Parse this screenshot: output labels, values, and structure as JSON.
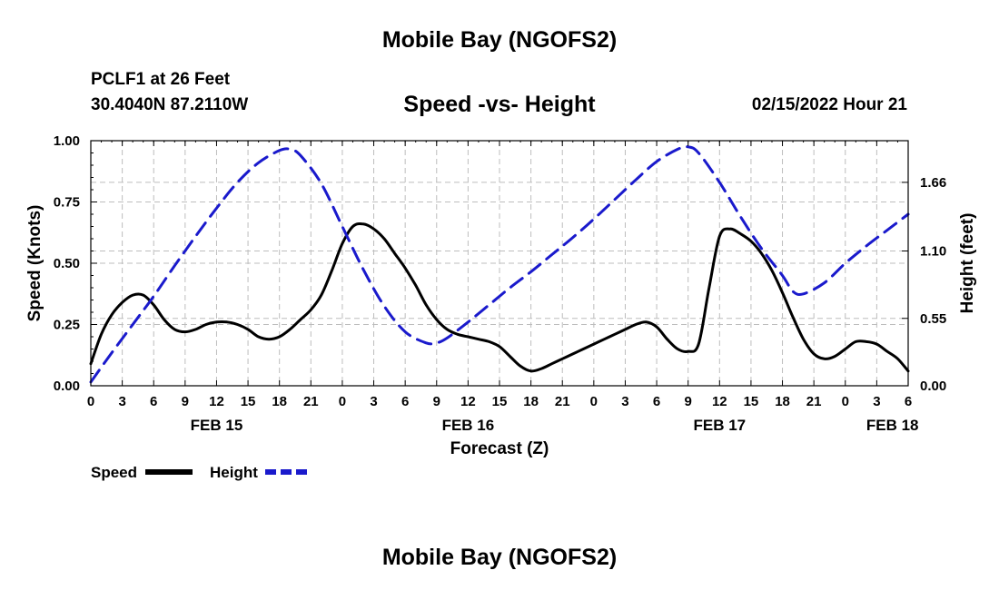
{
  "header": {
    "title": "Mobile Bay (NGOFS2)",
    "station": "PCLF1 at 26 Feet",
    "coords": "30.4040N  87.2110W",
    "subtitle": "Speed -vs- Height",
    "date": "02/15/2022 Hour 21"
  },
  "footer": {
    "title": "Mobile Bay (NGOFS2)"
  },
  "chart_data": {
    "type": "line",
    "xlabel": "Forecast (Z)",
    "ylabel": "Speed (Knots)",
    "y2label": "Height (feet)",
    "x_unit": "hours from FEB 15 00Z",
    "xlim": [
      0,
      78
    ],
    "ylim": [
      0,
      1.0
    ],
    "y2lim": [
      0,
      2.0
    ],
    "grid": true,
    "x_tick_labels": [
      "0",
      "3",
      "6",
      "9",
      "12",
      "15",
      "18",
      "21",
      "0",
      "3",
      "6",
      "9",
      "12",
      "15",
      "18",
      "21",
      "0",
      "3",
      "6",
      "9",
      "12",
      "15",
      "18",
      "21",
      "0",
      "3",
      "6"
    ],
    "date_labels": [
      {
        "label": "FEB 15",
        "x": 12
      },
      {
        "label": "FEB 16",
        "x": 36
      },
      {
        "label": "FEB 17",
        "x": 60
      },
      {
        "label": "FEB 18",
        "x": 76.5
      }
    ],
    "y_ticks": [
      "0.00",
      "0.25",
      "0.50",
      "0.75",
      "1.00"
    ],
    "y2_ticks": [
      "0.00",
      "0.55",
      "1.10",
      "1.66"
    ],
    "y2_tick_values": [
      0,
      0.55,
      1.1,
      1.66
    ],
    "legend": [
      {
        "name": "Speed",
        "color": "#000000"
      },
      {
        "name": "Height",
        "color": "#1a1acc"
      }
    ],
    "series": [
      {
        "name": "Speed",
        "axis": "left",
        "color": "#000000",
        "style": "solid",
        "x": [
          0,
          1,
          2,
          3,
          4,
          5,
          6,
          7,
          8,
          9,
          10,
          11,
          12,
          13,
          14,
          15,
          16,
          17,
          18,
          19,
          20,
          21,
          22,
          23,
          24,
          25,
          26,
          27,
          28,
          29,
          30,
          31,
          32,
          33,
          34,
          35,
          36,
          37,
          38,
          39,
          40,
          41,
          42,
          43,
          44,
          45,
          46,
          47,
          48,
          49,
          50,
          51,
          52,
          53,
          54,
          55,
          56,
          57,
          58,
          59,
          60,
          61,
          62,
          63,
          64,
          65,
          66,
          67,
          68,
          69,
          70,
          71,
          72,
          73,
          74,
          75,
          76,
          77,
          78
        ],
        "values": [
          0.09,
          0.21,
          0.29,
          0.34,
          0.37,
          0.37,
          0.33,
          0.27,
          0.23,
          0.22,
          0.23,
          0.25,
          0.26,
          0.26,
          0.25,
          0.23,
          0.2,
          0.19,
          0.2,
          0.23,
          0.27,
          0.31,
          0.37,
          0.47,
          0.58,
          0.65,
          0.66,
          0.64,
          0.6,
          0.54,
          0.48,
          0.41,
          0.33,
          0.27,
          0.23,
          0.21,
          0.2,
          0.19,
          0.18,
          0.16,
          0.12,
          0.08,
          0.06,
          0.07,
          0.09,
          0.11,
          0.13,
          0.15,
          0.17,
          0.19,
          0.21,
          0.23,
          0.25,
          0.26,
          0.24,
          0.19,
          0.15,
          0.14,
          0.17,
          0.4,
          0.61,
          0.64,
          0.62,
          0.59,
          0.54,
          0.47,
          0.38,
          0.28,
          0.19,
          0.13,
          0.11,
          0.12,
          0.15,
          0.18,
          0.18,
          0.17,
          0.14,
          0.11,
          0.06
        ]
      },
      {
        "name": "Height",
        "axis": "right",
        "color": "#1a1acc",
        "style": "dashed",
        "x": [
          0,
          2,
          4,
          6,
          8,
          10,
          12,
          14,
          16,
          18,
          19,
          20,
          22,
          24,
          26,
          28,
          30,
          32,
          33,
          34,
          36,
          38,
          40,
          42,
          44,
          46,
          48,
          50,
          52,
          54,
          56,
          57,
          58,
          60,
          62,
          64,
          66,
          67,
          68,
          70,
          72,
          74,
          76,
          78
        ],
        "values": [
          0.03,
          0.27,
          0.5,
          0.73,
          0.98,
          1.22,
          1.45,
          1.66,
          1.82,
          1.92,
          1.93,
          1.88,
          1.65,
          1.3,
          0.95,
          0.65,
          0.44,
          0.35,
          0.35,
          0.39,
          0.52,
          0.66,
          0.8,
          0.93,
          1.07,
          1.21,
          1.36,
          1.52,
          1.68,
          1.83,
          1.93,
          1.95,
          1.9,
          1.66,
          1.38,
          1.12,
          0.9,
          0.77,
          0.75,
          0.84,
          1.0,
          1.14,
          1.27,
          1.4
        ]
      }
    ]
  }
}
